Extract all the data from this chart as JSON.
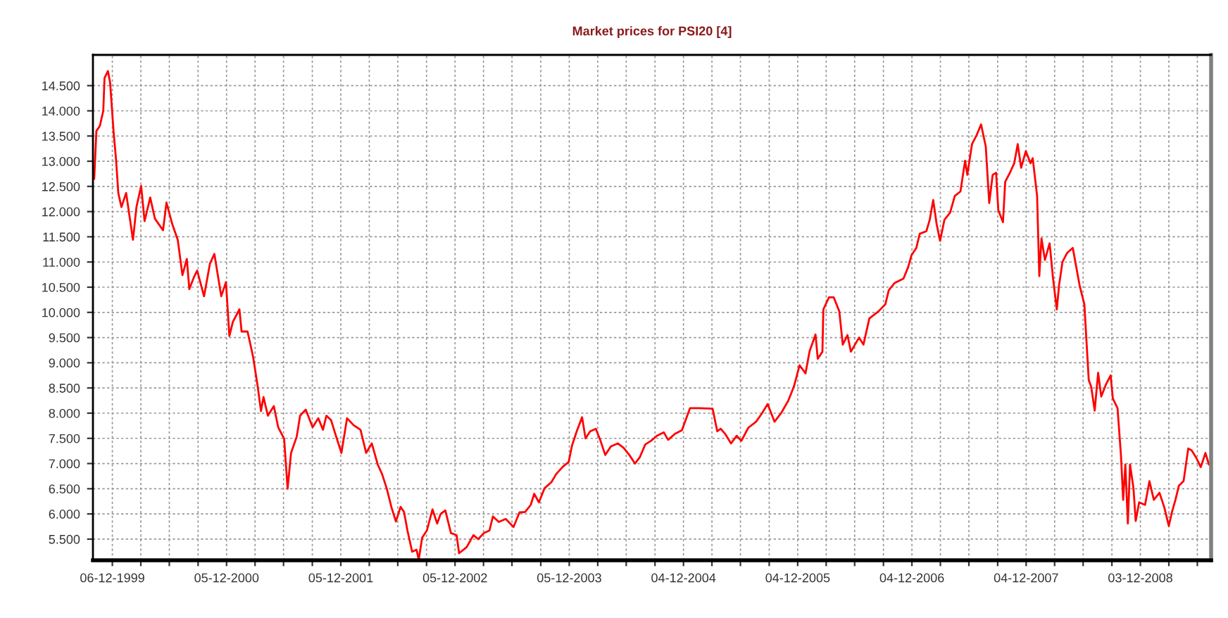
{
  "chart_data": {
    "type": "line",
    "title": "Market prices for PSI20 [4]",
    "series": [
      {
        "color": "#ff0000",
        "x": [
          "1999-10-09",
          "1999-10-16",
          "1999-10-27",
          "1999-11-07",
          "1999-11-11",
          "1999-11-22",
          "1999-11-29",
          "1999-12-10",
          "1999-12-18",
          "1999-12-25",
          "2000-01-04",
          "2000-01-19",
          "2000-02-10",
          "2000-02-21",
          "2000-03-07",
          "2000-03-18",
          "2000-04-05",
          "2000-04-20",
          "2000-05-16",
          "2000-05-27",
          "2000-06-14",
          "2000-07-02",
          "2000-07-17",
          "2000-07-31",
          "2000-08-08",
          "2000-08-22",
          "2000-09-02",
          "2000-09-24",
          "2000-10-13",
          "2000-10-27",
          "2000-11-18",
          "2000-12-03",
          "2000-12-14",
          "2000-12-25",
          "2001-01-15",
          "2001-01-22",
          "2001-02-10",
          "2001-02-28",
          "2001-03-14",
          "2001-03-25",
          "2001-04-02",
          "2001-04-16",
          "2001-05-05",
          "2001-05-19",
          "2001-06-07",
          "2001-06-18",
          "2001-06-29",
          "2001-07-17",
          "2001-07-28",
          "2001-08-15",
          "2001-09-06",
          "2001-09-24",
          "2001-10-09",
          "2001-10-20",
          "2001-11-04",
          "2001-11-18",
          "2001-12-07",
          "2001-12-25",
          "2002-01-15",
          "2002-02-06",
          "2002-02-24",
          "2002-03-14",
          "2002-04-02",
          "2002-04-16",
          "2002-05-01",
          "2002-05-16",
          "2002-05-30",
          "2002-06-14",
          "2002-06-25",
          "2002-07-06",
          "2002-07-21",
          "2002-08-04",
          "2002-08-11",
          "2002-08-22",
          "2002-09-06",
          "2002-09-24",
          "2002-10-09",
          "2002-10-20",
          "2002-11-04",
          "2002-11-22",
          "2002-12-10",
          "2002-12-18",
          "2003-01-11",
          "2003-02-02",
          "2003-02-17",
          "2003-03-07",
          "2003-03-25",
          "2003-04-05",
          "2003-04-24",
          "2003-05-16",
          "2003-06-10",
          "2003-06-29",
          "2003-07-17",
          "2003-08-04",
          "2003-08-15",
          "2003-08-30",
          "2003-09-17",
          "2003-10-09",
          "2003-10-24",
          "2003-11-15",
          "2003-12-03",
          "2003-12-14",
          "2003-12-29",
          "2004-01-15",
          "2004-01-26",
          "2004-02-10",
          "2004-02-28",
          "2004-03-14",
          "2004-03-29",
          "2004-04-16",
          "2004-05-08",
          "2004-05-27",
          "2004-06-14",
          "2004-07-02",
          "2004-07-17",
          "2004-08-04",
          "2004-08-22",
          "2004-09-10",
          "2004-10-02",
          "2004-10-16",
          "2004-11-07",
          "2004-11-29",
          "2004-12-25",
          "2005-01-22",
          "2005-03-07",
          "2005-03-22",
          "2005-04-02",
          "2005-04-16",
          "2005-05-05",
          "2005-05-23",
          "2005-06-07",
          "2005-06-29",
          "2005-07-24",
          "2005-08-11",
          "2005-08-30",
          "2005-09-21",
          "2005-10-13",
          "2005-11-04",
          "2005-11-22",
          "2005-12-10",
          "2005-12-29",
          "2006-01-11",
          "2006-01-30",
          "2006-02-06",
          "2006-02-21",
          "2006-02-24",
          "2006-03-14",
          "2006-03-29",
          "2006-04-16",
          "2006-04-27",
          "2006-05-12",
          "2006-05-23",
          "2006-06-18",
          "2006-07-02",
          "2006-07-21",
          "2006-08-19",
          "2006-09-10",
          "2006-09-21",
          "2006-10-09",
          "2006-11-07",
          "2006-11-22",
          "2006-12-03",
          "2006-12-18",
          "2006-12-29",
          "2007-01-19",
          "2007-01-30",
          "2007-02-10",
          "2007-02-21",
          "2007-03-04",
          "2007-03-18",
          "2007-04-05",
          "2007-04-20",
          "2007-05-08",
          "2007-05-23",
          "2007-05-30",
          "2007-06-14",
          "2007-06-29",
          "2007-07-13",
          "2007-07-28",
          "2007-08-08",
          "2007-08-19",
          "2007-08-30",
          "2007-09-06",
          "2007-09-21",
          "2007-09-28",
          "2007-10-13",
          "2007-10-27",
          "2007-11-07",
          "2007-11-18",
          "2007-12-03",
          "2007-12-18",
          "2007-12-25",
          "2008-01-08",
          "2008-01-15",
          "2008-01-22",
          "2008-02-02",
          "2008-02-17",
          "2008-02-28",
          "2008-03-11",
          "2008-03-18",
          "2008-03-29",
          "2008-04-13",
          "2008-05-01",
          "2008-05-08",
          "2008-05-23",
          "2008-06-07",
          "2008-06-21",
          "2008-06-29",
          "2008-07-10",
          "2008-07-21",
          "2008-07-31",
          "2008-08-15",
          "2008-08-30",
          "2008-09-06",
          "2008-09-21",
          "2008-10-02",
          "2008-10-09",
          "2008-10-16",
          "2008-10-24",
          "2008-10-31",
          "2008-11-11",
          "2008-11-18",
          "2008-11-29",
          "2008-12-18",
          "2009-01-01",
          "2009-01-15",
          "2009-02-02",
          "2009-02-17",
          "2009-03-04",
          "2009-03-14",
          "2009-03-25",
          "2009-04-05",
          "2009-04-20",
          "2009-05-05",
          "2009-05-16",
          "2009-05-30",
          "2009-06-14",
          "2009-06-29",
          "2009-07-10"
        ],
        "values": [
          12650,
          13600,
          13700,
          14000,
          14650,
          14790,
          14550,
          13580,
          13020,
          12370,
          12090,
          12370,
          11440,
          12090,
          12510,
          11810,
          12280,
          11860,
          11630,
          12180,
          11760,
          11440,
          10740,
          11060,
          10460,
          10690,
          10830,
          10320,
          10970,
          11160,
          10320,
          10600,
          9530,
          9810,
          10060,
          9620,
          9620,
          9110,
          8550,
          8040,
          8320,
          7950,
          8140,
          7720,
          7490,
          6500,
          7210,
          7530,
          7950,
          8070,
          7720,
          7900,
          7670,
          7950,
          7860,
          7580,
          7210,
          7900,
          7760,
          7670,
          7210,
          7400,
          6980,
          6790,
          6500,
          6130,
          5850,
          6140,
          6040,
          5670,
          5250,
          5290,
          5090,
          5530,
          5670,
          6090,
          5810,
          6000,
          6070,
          5620,
          5580,
          5220,
          5340,
          5580,
          5500,
          5620,
          5670,
          5950,
          5840,
          5900,
          5740,
          6030,
          6040,
          6180,
          6400,
          6230,
          6510,
          6630,
          6790,
          6940,
          7030,
          7360,
          7640,
          7920,
          7500,
          7640,
          7690,
          7450,
          7170,
          7340,
          7400,
          7310,
          7170,
          7000,
          7120,
          7380,
          7450,
          7550,
          7620,
          7470,
          7590,
          7660,
          8100,
          8100,
          8090,
          7640,
          7690,
          7590,
          7400,
          7550,
          7450,
          7710,
          7830,
          7990,
          8180,
          7830,
          8010,
          8250,
          8530,
          8950,
          8790,
          9230,
          9560,
          9080,
          9220,
          10060,
          10300,
          10300,
          10020,
          9360,
          9550,
          9220,
          9500,
          9360,
          9880,
          10020,
          10160,
          10440,
          10580,
          10670,
          10900,
          11140,
          11280,
          11560,
          11610,
          11840,
          12230,
          11750,
          11420,
          11840,
          11980,
          12310,
          12400,
          13010,
          12730,
          13340,
          13520,
          13730,
          13290,
          12170,
          12730,
          12770,
          12030,
          11790,
          12590,
          12770,
          12960,
          13340,
          12870,
          13200,
          12960,
          13060,
          12310,
          10720,
          11470,
          11040,
          11370,
          10670,
          10060,
          10530,
          11000,
          11180,
          11280,
          11040,
          10530,
          10160,
          8660,
          8520,
          8050,
          8800,
          8330,
          8570,
          8750,
          8290,
          8100,
          7160,
          6280,
          6980,
          5810,
          6980,
          6510,
          5860,
          6230,
          6180,
          6650,
          6280,
          6420,
          6140,
          5760,
          6040,
          6280,
          6560,
          6650,
          7300,
          7260,
          7120,
          6930,
          7210,
          6980
        ]
      }
    ],
    "xlim": [
      "1999-10-05",
      "2009-07-17"
    ],
    "xticks": [
      {
        "value": "1999-12-06",
        "label": "06-12-1999"
      },
      {
        "value": "2000-03-06",
        "label": null
      },
      {
        "value": "2000-06-05",
        "label": null
      },
      {
        "value": "2000-09-05",
        "label": null
      },
      {
        "value": "2000-12-05",
        "label": "05-12-2000"
      },
      {
        "value": "2001-03-06",
        "label": null
      },
      {
        "value": "2001-06-05",
        "label": null
      },
      {
        "value": "2001-09-05",
        "label": null
      },
      {
        "value": "2001-12-05",
        "label": "05-12-2001"
      },
      {
        "value": "2002-03-06",
        "label": null
      },
      {
        "value": "2002-06-05",
        "label": null
      },
      {
        "value": "2002-09-05",
        "label": null
      },
      {
        "value": "2002-12-05",
        "label": "05-12-2002"
      },
      {
        "value": "2003-03-06",
        "label": null
      },
      {
        "value": "2003-06-05",
        "label": null
      },
      {
        "value": "2003-09-05",
        "label": null
      },
      {
        "value": "2003-12-05",
        "label": "05-12-2003"
      },
      {
        "value": "2004-03-05",
        "label": null
      },
      {
        "value": "2004-06-04",
        "label": null
      },
      {
        "value": "2004-09-04",
        "label": null
      },
      {
        "value": "2004-12-04",
        "label": "04-12-2004"
      },
      {
        "value": "2005-03-05",
        "label": null
      },
      {
        "value": "2005-06-04",
        "label": null
      },
      {
        "value": "2005-09-04",
        "label": null
      },
      {
        "value": "2005-12-04",
        "label": "04-12-2005"
      },
      {
        "value": "2006-03-05",
        "label": null
      },
      {
        "value": "2006-06-04",
        "label": null
      },
      {
        "value": "2006-09-04",
        "label": null
      },
      {
        "value": "2006-12-04",
        "label": "04-12-2006"
      },
      {
        "value": "2007-03-05",
        "label": null
      },
      {
        "value": "2007-06-04",
        "label": null
      },
      {
        "value": "2007-09-04",
        "label": null
      },
      {
        "value": "2007-12-04",
        "label": "04-12-2007"
      },
      {
        "value": "2008-03-04",
        "label": null
      },
      {
        "value": "2008-06-03",
        "label": null
      },
      {
        "value": "2008-09-03",
        "label": null
      },
      {
        "value": "2008-12-03",
        "label": "03-12-2008"
      },
      {
        "value": "2009-03-04",
        "label": null
      },
      {
        "value": "2009-06-03",
        "label": null
      }
    ],
    "ylim": [
      5080,
      15110
    ],
    "yticks": [
      {
        "value": 5500,
        "label": "5.500"
      },
      {
        "value": 6000,
        "label": "6.000"
      },
      {
        "value": 6500,
        "label": "6.500"
      },
      {
        "value": 7000,
        "label": "7.000"
      },
      {
        "value": 7500,
        "label": "7.500"
      },
      {
        "value": 8000,
        "label": "8.000"
      },
      {
        "value": 8500,
        "label": "8.500"
      },
      {
        "value": 9000,
        "label": "9.000"
      },
      {
        "value": 9500,
        "label": "9.500"
      },
      {
        "value": 10000,
        "label": "10.000"
      },
      {
        "value": 10500,
        "label": "10.500"
      },
      {
        "value": 11000,
        "label": "11.000"
      },
      {
        "value": 11500,
        "label": "11.500"
      },
      {
        "value": 12000,
        "label": "12.000"
      },
      {
        "value": 12500,
        "label": "12.500"
      },
      {
        "value": 13000,
        "label": "13.000"
      },
      {
        "value": 13500,
        "label": "13.500"
      },
      {
        "value": 14000,
        "label": "14.000"
      },
      {
        "value": 14500,
        "label": "14.500"
      }
    ],
    "grid": true
  }
}
